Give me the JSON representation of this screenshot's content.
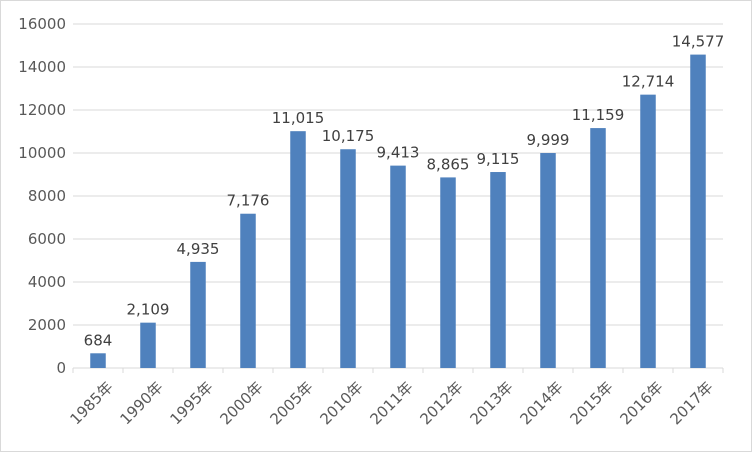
{
  "chart_data": {
    "type": "bar",
    "categories": [
      "1985年",
      "1990年",
      "1995年",
      "2000年",
      "2005年",
      "2010年",
      "2011年",
      "2012年",
      "2013年",
      "2014年",
      "2015年",
      "2016年",
      "2017年"
    ],
    "values": [
      684,
      2109,
      4935,
      7176,
      11015,
      10175,
      9413,
      8865,
      9115,
      9999,
      11159,
      12714,
      14577
    ],
    "data_labels": [
      "684",
      "2,109",
      "4,935",
      "7,176",
      "11,015",
      "10,175",
      "9,413",
      "8,865",
      "9,115",
      "9,999",
      "11,159",
      "12,714",
      "14,577"
    ],
    "yticks": [
      "0",
      "2000",
      "4000",
      "6000",
      "8000",
      "10000",
      "12000",
      "14000",
      "16000"
    ],
    "ylim": [
      0,
      16000
    ],
    "ystep": 2000,
    "bar_color": "#4f81bd",
    "grid": true,
    "legend": "none",
    "title": "",
    "xlabel": "",
    "ylabel": ""
  }
}
